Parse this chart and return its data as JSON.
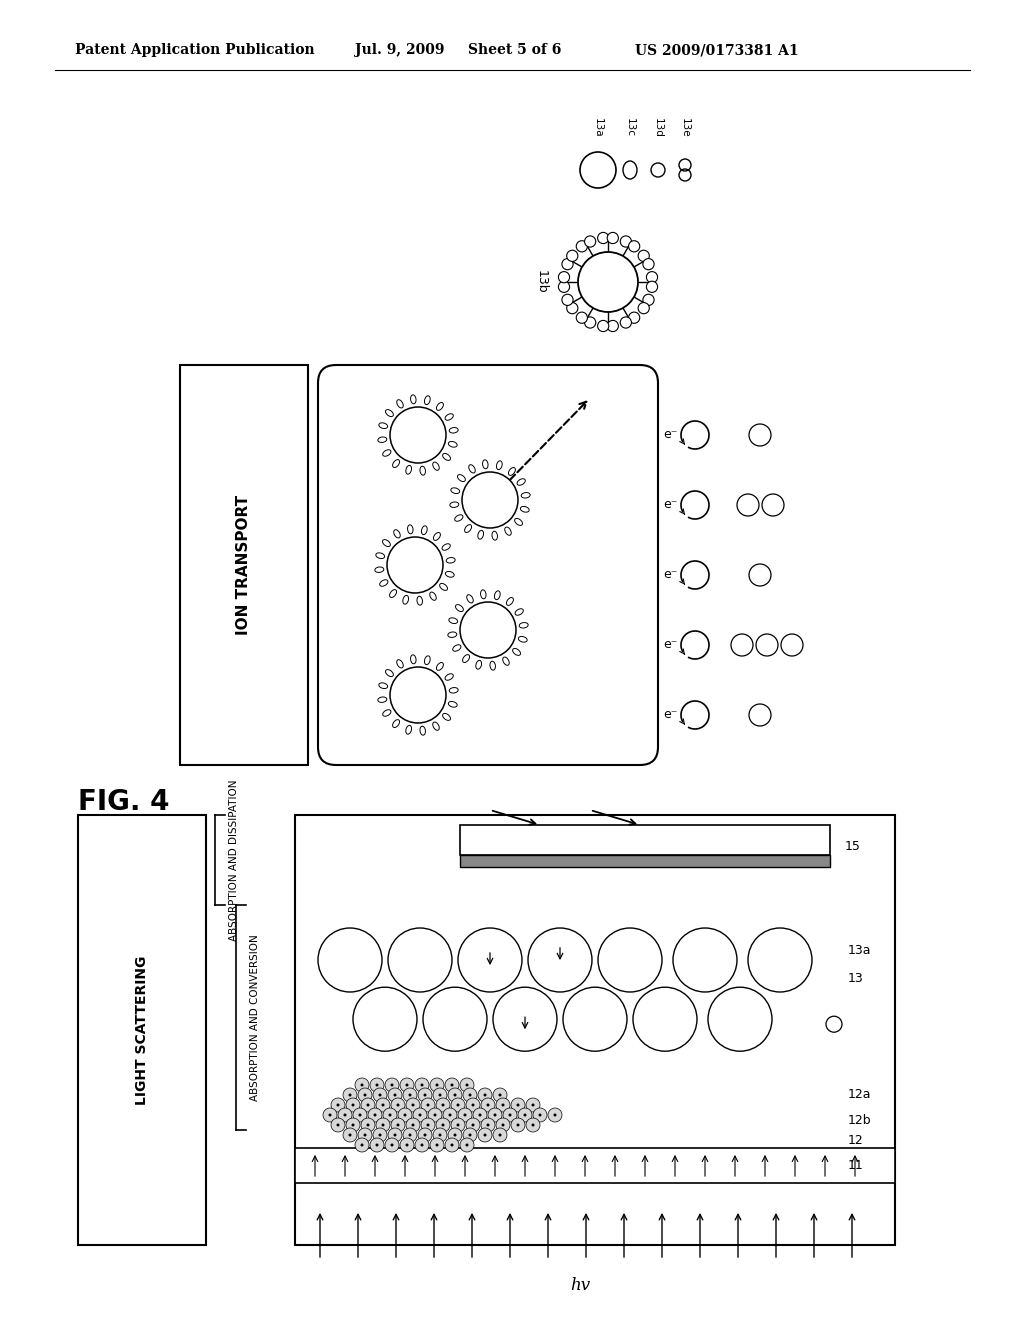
{
  "bg_color": "#ffffff",
  "header_text": "Patent Application Publication",
  "header_date": "Jul. 9, 2009",
  "header_sheet": "Sheet 5 of 6",
  "header_patent": "US 2009/0173381 A1",
  "fig_label": "FIG. 4",
  "labels_top_right": [
    "13a",
    "13c",
    "13d",
    "13e"
  ],
  "label_13b": "13b",
  "ion_transport_label": "ION TRANSPORT",
  "light_scattering_label": "LIGHT SCATTERING",
  "absorption_dissipation_label": "ABSORPTION AND DISSIPATION",
  "absorption_conversion_label": "ABSORPTION AND CONVERSION",
  "hv_label": "hv",
  "layer_labels": [
    "15",
    "13a",
    "13",
    "12a",
    "12b",
    "12",
    "11"
  ]
}
